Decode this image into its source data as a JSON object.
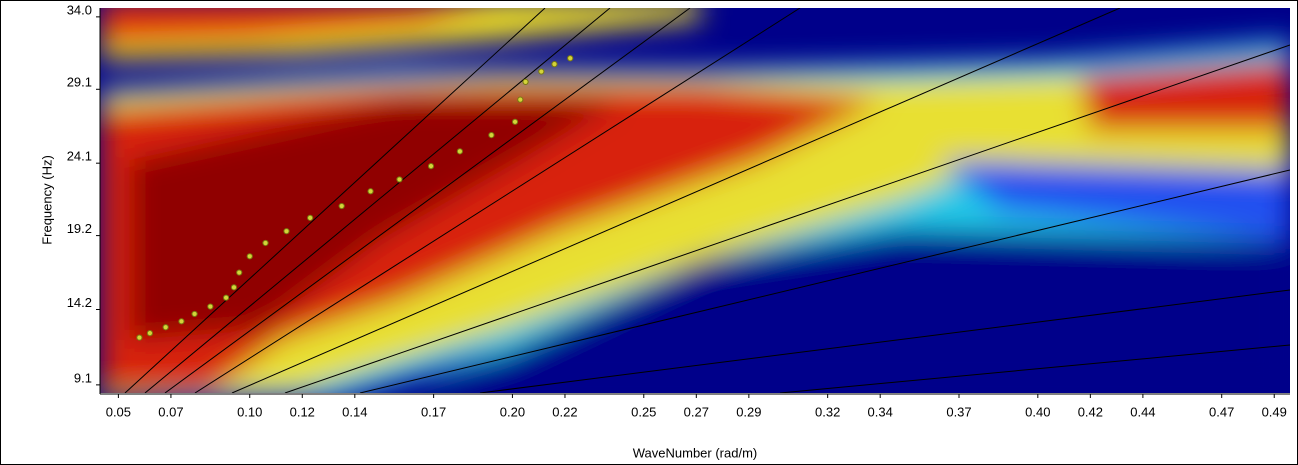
{
  "chart_data": {
    "type": "scatter",
    "x_label": "WaveNumber (rad/m)",
    "y_label": "Frequency (Hz)",
    "x": [
      0.058,
      0.062,
      0.068,
      0.074,
      0.079,
      0.085,
      0.091,
      0.094,
      0.096,
      0.1,
      0.106,
      0.114,
      0.123,
      0.135,
      0.146,
      0.157,
      0.169,
      0.18,
      0.192,
      0.201,
      0.203,
      0.205,
      0.211,
      0.216,
      0.222
    ],
    "series": [
      {
        "color": "#d4d43a",
        "values": [
          12.3,
          12.6,
          13.0,
          13.4,
          13.9,
          14.4,
          15.0,
          15.7,
          16.7,
          17.8,
          18.7,
          19.5,
          20.4,
          21.2,
          22.2,
          23.0,
          23.9,
          24.9,
          26.0,
          26.9,
          28.4,
          29.6,
          30.3,
          30.8,
          31.2
        ]
      }
    ],
    "xlim": [
      0.043,
      0.496
    ],
    "ylim": [
      8.55,
      34.6
    ],
    "xticks": [
      {
        "value": 0.05,
        "label": "0.05"
      },
      {
        "value": 0.07,
        "label": "0.07"
      },
      {
        "value": 0.1,
        "label": "0.10"
      },
      {
        "value": 0.12,
        "label": "0.12"
      },
      {
        "value": 0.14,
        "label": "0.14"
      },
      {
        "value": 0.17,
        "label": "0.17"
      },
      {
        "value": 0.2,
        "label": "0.20"
      },
      {
        "value": 0.22,
        "label": "0.22"
      },
      {
        "value": 0.25,
        "label": "0.25"
      },
      {
        "value": 0.27,
        "label": "0.27"
      },
      {
        "value": 0.29,
        "label": "0.29"
      },
      {
        "value": 0.32,
        "label": "0.32"
      },
      {
        "value": 0.34,
        "label": "0.34"
      },
      {
        "value": 0.37,
        "label": "0.37"
      },
      {
        "value": 0.4,
        "label": "0.40"
      },
      {
        "value": 0.42,
        "label": "0.42"
      },
      {
        "value": 0.44,
        "label": "0.44"
      },
      {
        "value": 0.47,
        "label": "0.47"
      },
      {
        "value": 0.49,
        "label": "0.49"
      }
    ],
    "yticks": [
      9.1,
      14.2,
      19.2,
      24.1,
      29.1,
      {
        "value": 34,
        "label": "34.0"
      }
    ]
  }
}
